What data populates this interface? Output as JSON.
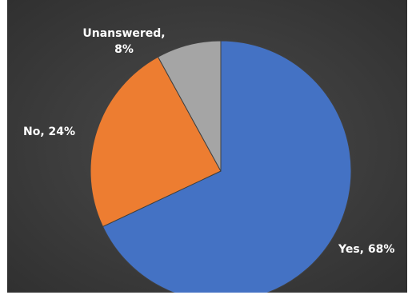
{
  "chart_data": {
    "type": "pie",
    "title": "",
    "slices": [
      {
        "label": "Yes",
        "value": 68,
        "display": "68%",
        "color": "#4472c4"
      },
      {
        "label": "No",
        "value": 24,
        "display": "24%",
        "color": "#ed7d31"
      },
      {
        "label": "Unanswered",
        "value": 8,
        "display": "8%",
        "color": "#a5a5a5"
      }
    ],
    "data_labels": {
      "yes": "Yes, 68%",
      "no": "No, 24%",
      "unanswered_line1": "Unanswered,",
      "unanswered_line2": "8%"
    },
    "background_color": "#404040",
    "legend": "none"
  }
}
